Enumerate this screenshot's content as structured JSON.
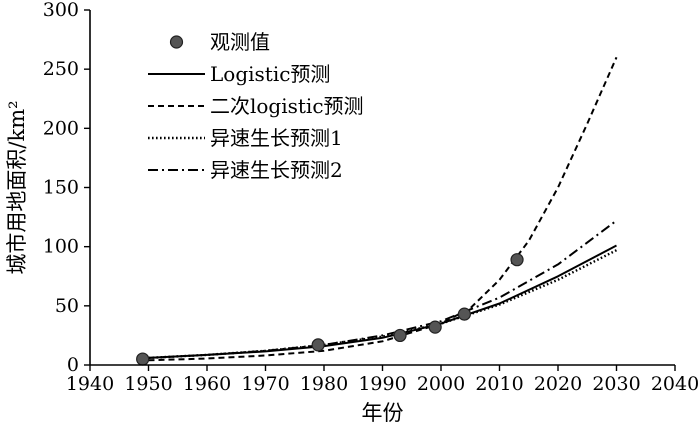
{
  "chart_data": {
    "type": "line",
    "title": "",
    "xlabel": "年份",
    "ylabel": "城市用地面积/km²",
    "xlim": [
      1940,
      2040
    ],
    "ylim": [
      0,
      300
    ],
    "xticks": [
      "1940",
      "1950",
      "1960",
      "1970",
      "1980",
      "1990",
      "2000",
      "2010",
      "2020",
      "2030",
      "2040"
    ],
    "yticks": [
      "0",
      "50",
      "100",
      "150",
      "200",
      "250",
      "300"
    ],
    "grid": false,
    "legend_position": "top-left",
    "observed": {
      "name": "观测值",
      "x": [
        1949,
        1979,
        1993,
        1999,
        2004,
        2013
      ],
      "y": [
        5,
        17,
        25,
        32,
        43,
        89
      ]
    },
    "series": [
      {
        "name": "Logistic预测",
        "style": "solid",
        "x": [
          1950,
          1960,
          1970,
          1980,
          1990,
          2000,
          2010,
          2020,
          2030
        ],
        "y": [
          6,
          8.5,
          11.5,
          16,
          23,
          35,
          52,
          75,
          101
        ]
      },
      {
        "name": "二次logistic预测",
        "style": "dashed",
        "x": [
          1950,
          1960,
          1970,
          1980,
          1990,
          2000,
          2005,
          2010,
          2015,
          2020,
          2025,
          2030
        ],
        "y": [
          4,
          5.5,
          8,
          12,
          20,
          35,
          48,
          72,
          105,
          150,
          204,
          260
        ]
      },
      {
        "name": "异速生长预测1",
        "style": "dotted",
        "x": [
          1950,
          1960,
          1970,
          1980,
          1990,
          2000,
          2010,
          2020,
          2030
        ],
        "y": [
          6,
          8.5,
          12,
          17,
          24,
          35,
          51,
          72,
          97
        ]
      },
      {
        "name": "异速生长预测2",
        "style": "dashdot",
        "x": [
          1950,
          1960,
          1970,
          1980,
          1990,
          2000,
          2010,
          2020,
          2030
        ],
        "y": [
          6,
          8.5,
          12,
          17,
          25,
          37,
          57,
          85,
          122
        ]
      }
    ],
    "colors": {
      "line": "#000000",
      "marker_fill": "#555555",
      "marker_stroke": "#222222"
    }
  }
}
